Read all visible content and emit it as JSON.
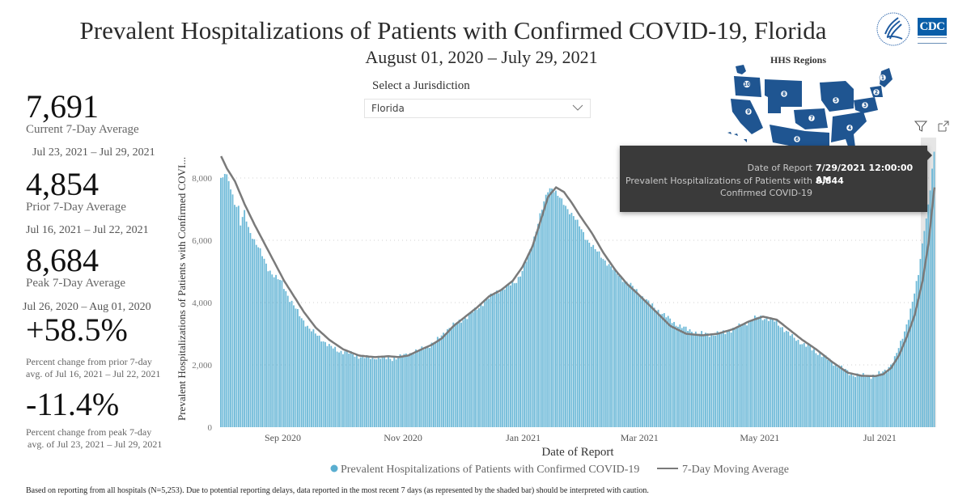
{
  "header": {
    "title": "Prevalent Hospitalizations of Patients with Confirmed COVID-19, Florida",
    "subtitle": "August 01, 2020 – July 29, 2021",
    "logos": {
      "hhs": "hhs-eagle-logo",
      "cdc": "CDC"
    }
  },
  "kpis": {
    "current": {
      "value": "7,691",
      "label": "Current 7-Day Average",
      "range": "Jul 23, 2021 – Jul 29, 2021"
    },
    "prior": {
      "value": "4,854",
      "label": "Prior 7-Day Average",
      "range": "Jul 16, 2021 – Jul 22, 2021"
    },
    "peak": {
      "value": "8,684",
      "label": "Peak 7-Day Average",
      "range": "Jul 26, 2020 – Aug 01, 2020"
    },
    "pct_prior": {
      "value": "+58.5%",
      "label_line1": "Percent change from prior 7-day",
      "label_line2": "avg. of Jul 16, 2021 – Jul 22, 2021"
    },
    "pct_peak": {
      "value": "-11.4%",
      "label_line1": "Percent change from peak 7-day",
      "label_line2": "avg. of Jul 23, 2021 – Jul 29, 2021"
    }
  },
  "jurisdiction": {
    "label": "Select a Jurisdiction",
    "selected": "Florida"
  },
  "map": {
    "title": "HHS Regions",
    "region_labels": [
      "1",
      "2",
      "3",
      "4",
      "5",
      "6",
      "7",
      "8",
      "9",
      "10"
    ],
    "color": "#1f5591"
  },
  "visual_icons": {
    "filter": "filter-icon",
    "focus": "focus-mode-icon"
  },
  "tooltip": {
    "rows": [
      {
        "key": "Date of Report",
        "value": "7/29/2021 12:00:00 AM"
      },
      {
        "key_line1": "Prevalent Hospitalizations of Patients with",
        "key_line2": "Confirmed COVID-19",
        "value": "8,844"
      }
    ]
  },
  "colors": {
    "bar": "#6fbad8",
    "bar_stroke": "#5aaed0",
    "line": "#7a7a7a",
    "grid": "#d0d0d0",
    "shade": "#e6e6e6"
  },
  "footer": "Based on reporting from all hospitals (N=5,253). Due to potential reporting delays, data reported in the most recent 7 days (as represented by the shaded bar) should be interpreted with caution.",
  "chart_data": {
    "type": "bar",
    "title": "Prevalent Hospitalizations of Patients with Confirmed COVID-19, Florida",
    "xlabel": "Date of Report",
    "ylabel": "Prevalent Hospitalizations of Patients with Confirmed COVI...",
    "ylim": [
      0,
      8900
    ],
    "yticks": [
      0,
      2000,
      4000,
      6000,
      8000
    ],
    "ytick_labels": [
      "0",
      "2,000",
      "4,000",
      "6,000",
      "8,000"
    ],
    "x_start": "2020-08-01",
    "x_end": "2021-07-29",
    "num_days": 363,
    "xtick_labels": [
      {
        "label": "Sep 2020",
        "day": 31
      },
      {
        "label": "Nov 2020",
        "day": 92
      },
      {
        "label": "Jan 2021",
        "day": 153
      },
      {
        "label": "Mar 2021",
        "day": 212
      },
      {
        "label": "May 2021",
        "day": 273
      },
      {
        "label": "Jul 2021",
        "day": 334
      }
    ],
    "grid": true,
    "legend_position": "bottom",
    "shaded_recent_days": 7,
    "series": [
      {
        "name": "Prevalent Hospitalizations of Patients with Confirmed COVID-19",
        "kind": "bar",
        "keypoints_day_value": [
          [
            0,
            8000
          ],
          [
            1,
            7950
          ],
          [
            2,
            8150
          ],
          [
            3,
            8050
          ],
          [
            5,
            7700
          ],
          [
            7,
            7200
          ],
          [
            9,
            7050
          ],
          [
            10,
            6500
          ],
          [
            12,
            6900
          ],
          [
            14,
            6400
          ],
          [
            17,
            6000
          ],
          [
            20,
            5650
          ],
          [
            24,
            5100
          ],
          [
            27,
            4850
          ],
          [
            31,
            4650
          ],
          [
            35,
            4100
          ],
          [
            40,
            3600
          ],
          [
            45,
            3150
          ],
          [
            50,
            2900
          ],
          [
            55,
            2600
          ],
          [
            60,
            2450
          ],
          [
            65,
            2380
          ],
          [
            70,
            2280
          ],
          [
            75,
            2230
          ],
          [
            80,
            2250
          ],
          [
            85,
            2200
          ],
          [
            90,
            2230
          ],
          [
            95,
            2350
          ],
          [
            100,
            2450
          ],
          [
            105,
            2600
          ],
          [
            110,
            2800
          ],
          [
            115,
            3150
          ],
          [
            120,
            3350
          ],
          [
            125,
            3550
          ],
          [
            130,
            3800
          ],
          [
            135,
            4100
          ],
          [
            140,
            4350
          ],
          [
            145,
            4500
          ],
          [
            150,
            4700
          ],
          [
            153,
            5000
          ],
          [
            156,
            5500
          ],
          [
            159,
            6100
          ],
          [
            162,
            6800
          ],
          [
            164,
            7200
          ],
          [
            166,
            7600
          ],
          [
            168,
            7700
          ],
          [
            170,
            7550
          ],
          [
            173,
            7250
          ],
          [
            176,
            7000
          ],
          [
            179,
            6800
          ],
          [
            182,
            6450
          ],
          [
            185,
            6100
          ],
          [
            190,
            5700
          ],
          [
            195,
            5350
          ],
          [
            200,
            5000
          ],
          [
            205,
            4700
          ],
          [
            210,
            4450
          ],
          [
            212,
            4300
          ],
          [
            218,
            3950
          ],
          [
            224,
            3650
          ],
          [
            230,
            3350
          ],
          [
            236,
            3150
          ],
          [
            243,
            3000
          ],
          [
            250,
            2980
          ],
          [
            256,
            3050
          ],
          [
            262,
            3200
          ],
          [
            268,
            3400
          ],
          [
            273,
            3550
          ],
          [
            276,
            3500
          ],
          [
            280,
            3450
          ],
          [
            285,
            3200
          ],
          [
            290,
            2900
          ],
          [
            295,
            2700
          ],
          [
            300,
            2500
          ],
          [
            304,
            2350
          ],
          [
            310,
            2100
          ],
          [
            315,
            1900
          ],
          [
            320,
            1700
          ],
          [
            325,
            1650
          ],
          [
            330,
            1650
          ],
          [
            334,
            1700
          ],
          [
            338,
            1850
          ],
          [
            342,
            2200
          ],
          [
            345,
            2700
          ],
          [
            348,
            3300
          ],
          [
            351,
            4000
          ],
          [
            354,
            4900
          ],
          [
            356,
            5900
          ],
          [
            358,
            6700
          ],
          [
            360,
            7600
          ],
          [
            361,
            8300
          ],
          [
            362,
            8844
          ]
        ]
      },
      {
        "name": "7-Day Moving Average",
        "kind": "line",
        "keypoints_day_value": [
          [
            0,
            8700
          ],
          [
            3,
            8300
          ],
          [
            7,
            7900
          ],
          [
            12,
            7150
          ],
          [
            17,
            6500
          ],
          [
            22,
            5900
          ],
          [
            27,
            5300
          ],
          [
            32,
            4700
          ],
          [
            37,
            4200
          ],
          [
            42,
            3700
          ],
          [
            48,
            3200
          ],
          [
            55,
            2800
          ],
          [
            62,
            2500
          ],
          [
            70,
            2300
          ],
          [
            78,
            2250
          ],
          [
            85,
            2280
          ],
          [
            90,
            2250
          ],
          [
            95,
            2300
          ],
          [
            100,
            2450
          ],
          [
            107,
            2650
          ],
          [
            112,
            2850
          ],
          [
            118,
            3250
          ],
          [
            124,
            3550
          ],
          [
            130,
            3850
          ],
          [
            136,
            4200
          ],
          [
            142,
            4400
          ],
          [
            148,
            4700
          ],
          [
            153,
            5150
          ],
          [
            158,
            5800
          ],
          [
            162,
            6600
          ],
          [
            166,
            7400
          ],
          [
            170,
            7700
          ],
          [
            174,
            7550
          ],
          [
            178,
            7200
          ],
          [
            182,
            6800
          ],
          [
            188,
            6250
          ],
          [
            194,
            5600
          ],
          [
            200,
            5050
          ],
          [
            206,
            4600
          ],
          [
            212,
            4250
          ],
          [
            220,
            3750
          ],
          [
            228,
            3250
          ],
          [
            236,
            3000
          ],
          [
            244,
            2950
          ],
          [
            252,
            3000
          ],
          [
            260,
            3150
          ],
          [
            268,
            3400
          ],
          [
            275,
            3550
          ],
          [
            282,
            3450
          ],
          [
            288,
            3150
          ],
          [
            295,
            2800
          ],
          [
            302,
            2500
          ],
          [
            310,
            2100
          ],
          [
            318,
            1750
          ],
          [
            325,
            1650
          ],
          [
            332,
            1640
          ],
          [
            336,
            1700
          ],
          [
            340,
            1900
          ],
          [
            344,
            2300
          ],
          [
            348,
            2900
          ],
          [
            352,
            3600
          ],
          [
            356,
            4700
          ],
          [
            359,
            5900
          ],
          [
            362,
            7700
          ]
        ]
      }
    ],
    "tooltip_point": {
      "date": "7/29/2021 12:00:00 AM",
      "value": 8844
    }
  }
}
